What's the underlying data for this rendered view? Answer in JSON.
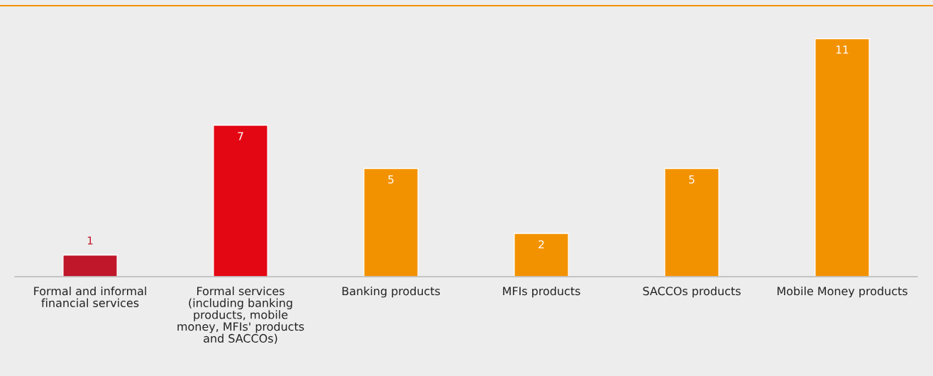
{
  "chart_data": {
    "type": "bar",
    "categories": [
      "Formal and informal financial services",
      "Formal services (including banking products, mobile money, MFIs' products and SACCOs)",
      "Banking products",
      "MFIs products",
      "SACCOs products",
      "Mobile Money products"
    ],
    "values": [
      1,
      7,
      5,
      2,
      5,
      11
    ],
    "colors": [
      "#c0172a",
      "#e30613",
      "#f39200",
      "#f39200",
      "#f39200",
      "#f39200"
    ],
    "data_labels": true,
    "grid": false,
    "legend": false
  }
}
